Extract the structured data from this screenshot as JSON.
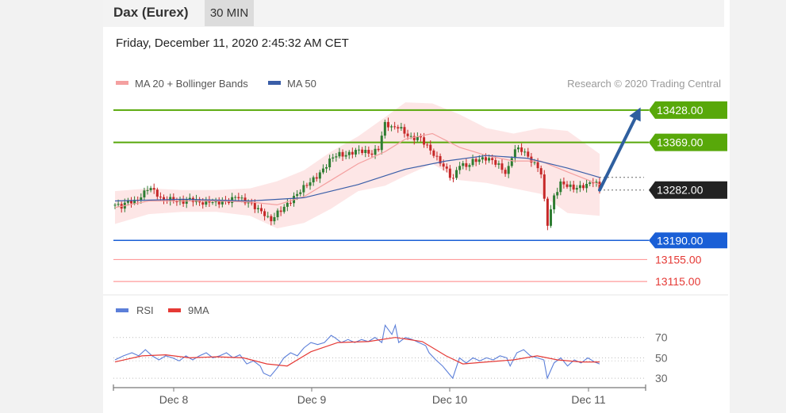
{
  "header": {
    "instrument": "Dax (Eurex)",
    "timeframe": "30 MIN"
  },
  "timestamp": "Friday, December 11, 2020 2:45:32 AM CET",
  "colors": {
    "up": "#2e7d32",
    "down": "#c62828",
    "band_fill": "#fde2e2",
    "ma20": "#f4a0a0",
    "ma50": "#3a5ea8",
    "resistance": "#58a80a",
    "support": "#1a5fd6",
    "weak_support": "#ff9b9b",
    "arrow": "#2f5f9f",
    "rsi": "#5c7fd9",
    "rsi_ma": "#e53935"
  },
  "chart_data": [
    {
      "type": "line",
      "legend": [
        "MA 20 + Bollinger Bands",
        "MA 50"
      ],
      "legend_placement": "top-left",
      "credit": "Research © 2020 Trading Central",
      "ylim": [
        13105,
        13448
      ],
      "x_ticks": [
        "Dec 8",
        "Dec 9",
        "Dec 10",
        "Dec 11"
      ],
      "current_price": "13282.00",
      "levels": [
        {
          "value": 13428,
          "label": "13428.00",
          "kind": "resistance"
        },
        {
          "value": 13369,
          "label": "13369.00",
          "kind": "resistance"
        },
        {
          "value": 13190,
          "label": "13190.00",
          "kind": "support"
        },
        {
          "value": 13155,
          "label": "13155.00",
          "kind": "weak"
        },
        {
          "value": 13115,
          "label": "13115.00",
          "kind": "weak"
        }
      ],
      "close_series": [
        [
          0,
          13255
        ],
        [
          4,
          13252
        ],
        [
          8,
          13262
        ],
        [
          12,
          13260
        ],
        [
          16,
          13272
        ],
        [
          20,
          13288
        ],
        [
          24,
          13278
        ],
        [
          28,
          13262
        ],
        [
          32,
          13266
        ],
        [
          36,
          13262
        ],
        [
          40,
          13260
        ],
        [
          44,
          13266
        ],
        [
          48,
          13262
        ],
        [
          52,
          13258
        ],
        [
          56,
          13262
        ],
        [
          60,
          13258
        ],
        [
          64,
          13262
        ],
        [
          68,
          13262
        ],
        [
          72,
          13272
        ],
        [
          76,
          13262
        ],
        [
          80,
          13258
        ],
        [
          84,
          13248
        ],
        [
          88,
          13240
        ],
        [
          92,
          13225
        ],
        [
          96,
          13240
        ],
        [
          100,
          13250
        ],
        [
          104,
          13262
        ],
        [
          108,
          13275
        ],
        [
          112,
          13288
        ],
        [
          116,
          13298
        ],
        [
          120,
          13308
        ],
        [
          124,
          13322
        ],
        [
          128,
          13340
        ],
        [
          132,
          13348
        ],
        [
          136,
          13345
        ],
        [
          140,
          13350
        ],
        [
          144,
          13355
        ],
        [
          148,
          13352
        ],
        [
          152,
          13348
        ],
        [
          156,
          13358
        ],
        [
          160,
          13405
        ],
        [
          164,
          13395
        ],
        [
          168,
          13398
        ],
        [
          172,
          13385
        ],
        [
          176,
          13375
        ],
        [
          180,
          13380
        ],
        [
          184,
          13365
        ],
        [
          188,
          13350
        ],
        [
          192,
          13335
        ],
        [
          196,
          13320
        ],
        [
          200,
          13300
        ],
        [
          204,
          13330
        ],
        [
          208,
          13325
        ],
        [
          212,
          13335
        ],
        [
          216,
          13338
        ],
        [
          220,
          13340
        ],
        [
          224,
          13335
        ],
        [
          228,
          13325
        ],
        [
          232,
          13310
        ],
        [
          236,
          13355
        ],
        [
          240,
          13358
        ],
        [
          244,
          13345
        ],
        [
          248,
          13330
        ],
        [
          252,
          13320
        ],
        [
          256,
          13218
        ],
        [
          260,
          13270
        ],
        [
          264,
          13295
        ],
        [
          268,
          13290
        ],
        [
          272,
          13285
        ],
        [
          276,
          13288
        ],
        [
          280,
          13292
        ],
        [
          284,
          13300
        ],
        [
          287,
          13282
        ]
      ],
      "ma20_series": [
        [
          0,
          13250
        ],
        [
          20,
          13262
        ],
        [
          40,
          13262
        ],
        [
          60,
          13262
        ],
        [
          80,
          13260
        ],
        [
          96,
          13255
        ],
        [
          112,
          13270
        ],
        [
          128,
          13300
        ],
        [
          144,
          13330
        ],
        [
          160,
          13352
        ],
        [
          172,
          13375
        ],
        [
          188,
          13385
        ],
        [
          204,
          13360
        ],
        [
          220,
          13345
        ],
        [
          236,
          13335
        ],
        [
          252,
          13335
        ],
        [
          268,
          13315
        ],
        [
          287,
          13292
        ]
      ],
      "upper_band_series": [
        [
          0,
          13280
        ],
        [
          20,
          13285
        ],
        [
          40,
          13282
        ],
        [
          60,
          13282
        ],
        [
          80,
          13285
        ],
        [
          96,
          13298
        ],
        [
          112,
          13318
        ],
        [
          128,
          13352
        ],
        [
          144,
          13380
        ],
        [
          160,
          13415
        ],
        [
          172,
          13442
        ],
        [
          188,
          13440
        ],
        [
          204,
          13420
        ],
        [
          220,
          13395
        ],
        [
          236,
          13385
        ],
        [
          252,
          13395
        ],
        [
          268,
          13390
        ],
        [
          287,
          13348
        ]
      ],
      "lower_band_series": [
        [
          0,
          13220
        ],
        [
          20,
          13238
        ],
        [
          40,
          13242
        ],
        [
          60,
          13242
        ],
        [
          80,
          13235
        ],
        [
          96,
          13212
        ],
        [
          112,
          13222
        ],
        [
          128,
          13248
        ],
        [
          144,
          13280
        ],
        [
          160,
          13290
        ],
        [
          172,
          13308
        ],
        [
          188,
          13330
        ],
        [
          204,
          13300
        ],
        [
          220,
          13295
        ],
        [
          236,
          13285
        ],
        [
          252,
          13275
        ],
        [
          268,
          13240
        ],
        [
          287,
          13235
        ]
      ],
      "ma50_series": [
        [
          0,
          13262
        ],
        [
          40,
          13265
        ],
        [
          80,
          13262
        ],
        [
          112,
          13268
        ],
        [
          144,
          13292
        ],
        [
          172,
          13320
        ],
        [
          196,
          13335
        ],
        [
          220,
          13345
        ],
        [
          244,
          13340
        ],
        [
          268,
          13322
        ],
        [
          287,
          13305
        ]
      ],
      "forecast_arrow": {
        "from": [
          287,
          13282
        ],
        "to": [
          310,
          13428
        ]
      }
    },
    {
      "type": "line",
      "legend": [
        "RSI",
        "9MA"
      ],
      "legend_placement": "top-left",
      "ylim": [
        20,
        90
      ],
      "y_ticks": [
        70,
        50,
        30
      ],
      "rsi_series": [
        [
          0,
          48
        ],
        [
          5,
          52
        ],
        [
          10,
          55
        ],
        [
          14,
          52
        ],
        [
          18,
          58
        ],
        [
          22,
          52
        ],
        [
          26,
          48
        ],
        [
          30,
          52
        ],
        [
          34,
          50
        ],
        [
          38,
          47
        ],
        [
          42,
          52
        ],
        [
          46,
          48
        ],
        [
          50,
          52
        ],
        [
          54,
          55
        ],
        [
          58,
          50
        ],
        [
          62,
          52
        ],
        [
          66,
          55
        ],
        [
          70,
          50
        ],
        [
          74,
          53
        ],
        [
          78,
          44
        ],
        [
          82,
          47
        ],
        [
          86,
          42
        ],
        [
          88,
          35
        ],
        [
          92,
          32
        ],
        [
          96,
          40
        ],
        [
          100,
          50
        ],
        [
          104,
          55
        ],
        [
          108,
          52
        ],
        [
          112,
          60
        ],
        [
          116,
          65
        ],
        [
          120,
          63
        ],
        [
          124,
          65
        ],
        [
          128,
          72
        ],
        [
          130,
          70
        ],
        [
          134,
          65
        ],
        [
          138,
          68
        ],
        [
          142,
          65
        ],
        [
          146,
          68
        ],
        [
          150,
          66
        ],
        [
          154,
          70
        ],
        [
          158,
          65
        ],
        [
          160,
          82
        ],
        [
          164,
          73
        ],
        [
          166,
          82
        ],
        [
          168,
          65
        ],
        [
          172,
          70
        ],
        [
          176,
          68
        ],
        [
          180,
          65
        ],
        [
          184,
          62
        ],
        [
          186,
          55
        ],
        [
          190,
          48
        ],
        [
          194,
          42
        ],
        [
          196,
          38
        ],
        [
          200,
          30
        ],
        [
          204,
          50
        ],
        [
          208,
          45
        ],
        [
          212,
          50
        ],
        [
          216,
          47
        ],
        [
          220,
          50
        ],
        [
          224,
          48
        ],
        [
          228,
          52
        ],
        [
          232,
          50
        ],
        [
          234,
          42
        ],
        [
          238,
          55
        ],
        [
          242,
          58
        ],
        [
          246,
          52
        ],
        [
          250,
          50
        ],
        [
          254,
          48
        ],
        [
          256,
          30
        ],
        [
          260,
          45
        ],
        [
          264,
          50
        ],
        [
          268,
          42
        ],
        [
          272,
          48
        ],
        [
          276,
          45
        ],
        [
          280,
          50
        ],
        [
          284,
          46
        ],
        [
          287,
          44
        ]
      ],
      "ma9_series": [
        [
          0,
          46
        ],
        [
          16,
          52
        ],
        [
          30,
          53
        ],
        [
          44,
          50
        ],
        [
          60,
          51
        ],
        [
          76,
          50
        ],
        [
          90,
          44
        ],
        [
          102,
          42
        ],
        [
          116,
          56
        ],
        [
          132,
          65
        ],
        [
          150,
          66
        ],
        [
          166,
          70
        ],
        [
          182,
          66
        ],
        [
          196,
          52
        ],
        [
          206,
          44
        ],
        [
          220,
          46
        ],
        [
          236,
          48
        ],
        [
          250,
          52
        ],
        [
          262,
          48
        ],
        [
          276,
          46
        ],
        [
          287,
          46
        ]
      ]
    }
  ]
}
